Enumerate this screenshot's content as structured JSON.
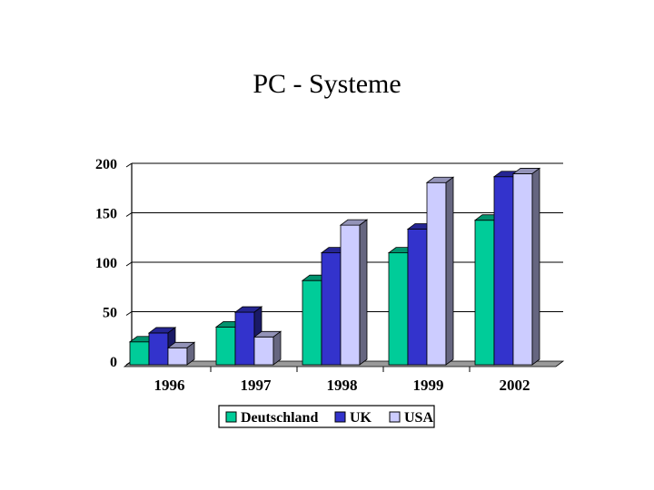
{
  "slide": {
    "title": "PC - Systeme"
  },
  "chart_data": {
    "type": "bar",
    "title": "PC - Systeme",
    "xlabel": "",
    "ylabel": "",
    "categories": [
      "1996",
      "1997",
      "1998",
      "1999",
      "2002"
    ],
    "series": [
      {
        "name": "Deutschland",
        "values": [
          25,
          40,
          87,
          115,
          148
        ],
        "color": "#00CC99"
      },
      {
        "name": "UK",
        "values": [
          34,
          55,
          115,
          139,
          192
        ],
        "color": "#3333CC"
      },
      {
        "name": "USA",
        "values": [
          19,
          30,
          143,
          186,
          195
        ],
        "color": "#CCCCFF"
      }
    ],
    "ylim": [
      0,
      200
    ],
    "yticks": [
      "0",
      "50",
      "100",
      "150",
      "200"
    ],
    "grid": true,
    "legend_position": "bottom",
    "three_d": true
  }
}
